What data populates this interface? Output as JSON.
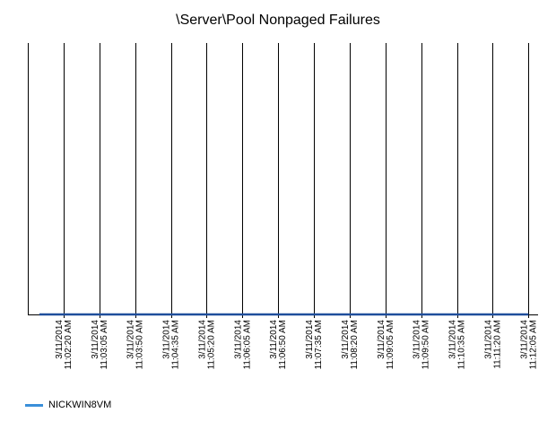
{
  "chart_data": {
    "type": "line",
    "title": "\\Server\\Pool Nonpaged Failures",
    "xlabel": "",
    "ylabel": "",
    "categories": [
      [
        "3/11/2014",
        "11:02:20 AM"
      ],
      [
        "3/11/2014",
        "11:03:05 AM"
      ],
      [
        "3/11/2014",
        "11:03:50 AM"
      ],
      [
        "3/11/2014",
        "11:04:35 AM"
      ],
      [
        "3/11/2014",
        "11:05:20 AM"
      ],
      [
        "3/11/2014",
        "11:06:05 AM"
      ],
      [
        "3/11/2014",
        "11:06:50 AM"
      ],
      [
        "3/11/2014",
        "11:07:35 AM"
      ],
      [
        "3/11/2014",
        "11:08:20 AM"
      ],
      [
        "3/11/2014",
        "11:09:05 AM"
      ],
      [
        "3/11/2014",
        "11:09:50 AM"
      ],
      [
        "3/11/2014",
        "11:10:35 AM"
      ],
      [
        "3/11/2014",
        "11:11:20 AM"
      ],
      [
        "3/11/2014",
        "11:12:05 AM"
      ]
    ],
    "series": [
      {
        "name": "NICKWIN8VM",
        "color": "#1f4e9c",
        "values": [
          0,
          0,
          0,
          0,
          0,
          0,
          0,
          0,
          0,
          0,
          0,
          0,
          0,
          0
        ]
      }
    ],
    "ylim": [
      0,
      1
    ],
    "grid": "vertical",
    "legend_position": "bottom-left",
    "legend_color": "#3a8fd9"
  }
}
